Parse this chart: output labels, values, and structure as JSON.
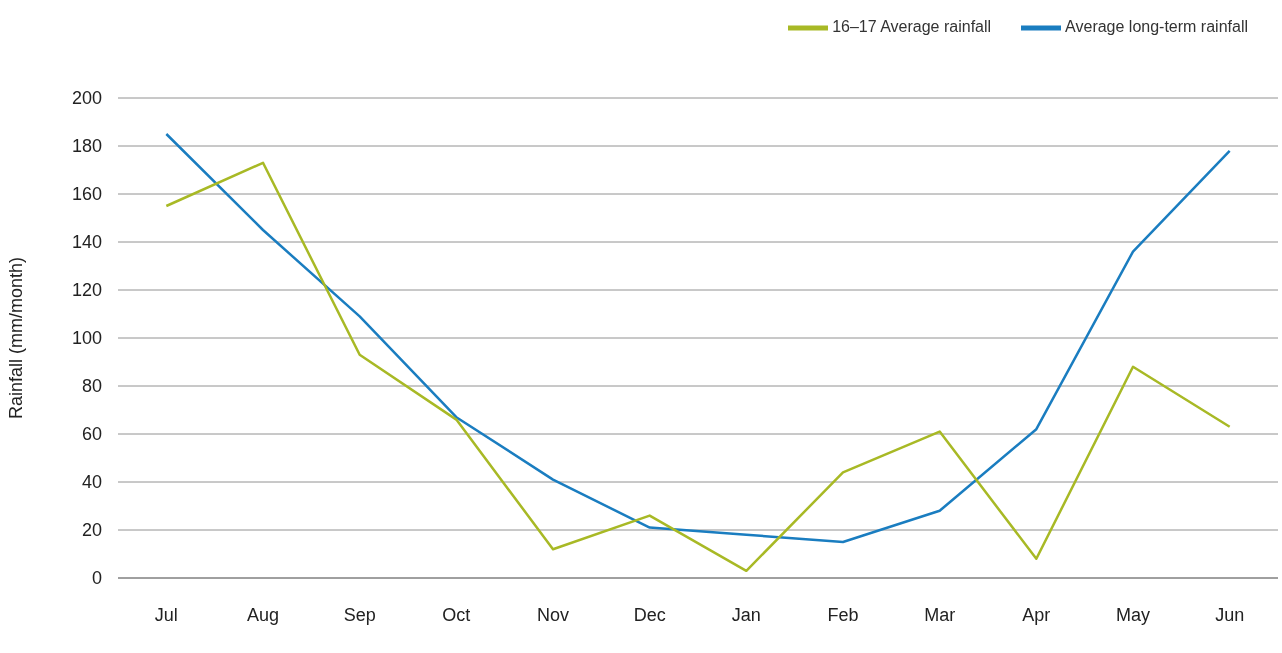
{
  "chart_data": {
    "type": "line",
    "ylabel": "Rainfall (mm/month)",
    "categories": [
      "Jul",
      "Aug",
      "Sep",
      "Oct",
      "Nov",
      "Dec",
      "Jan",
      "Feb",
      "Mar",
      "Apr",
      "May",
      "Jun"
    ],
    "series": [
      {
        "name": "Average long-term rainfall",
        "color": "#1a7dc0",
        "values": [
          185,
          145,
          109,
          67,
          41,
          21,
          18,
          15,
          28,
          62,
          136,
          178
        ]
      },
      {
        "name": "16–17 Average rainfall",
        "color": "#a8b925",
        "values": [
          155,
          173,
          93,
          66,
          12,
          26,
          3,
          44,
          61,
          8,
          88,
          63
        ]
      }
    ],
    "ylim": [
      0,
      200
    ],
    "yticks": [
      0,
      20,
      40,
      60,
      80,
      100,
      120,
      140,
      160,
      180,
      200
    ],
    "grid": "y",
    "legend": "top right",
    "marker": "none",
    "line_style": "solid"
  }
}
